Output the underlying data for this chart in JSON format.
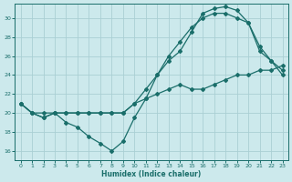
{
  "xlabel": "Humidex (Indice chaleur)",
  "bg_color": "#cce9ec",
  "line_color": "#1a6e6a",
  "grid_color": "#aacfd4",
  "xlim": [
    -0.5,
    23.5
  ],
  "ylim": [
    15.0,
    31.5
  ],
  "yticks": [
    16,
    18,
    20,
    22,
    24,
    26,
    28,
    30
  ],
  "xticks": [
    0,
    1,
    2,
    3,
    4,
    5,
    6,
    7,
    8,
    9,
    10,
    11,
    12,
    13,
    14,
    15,
    16,
    17,
    18,
    19,
    20,
    21,
    22,
    23
  ],
  "curve1_x": [
    0,
    1,
    2,
    3,
    4,
    5,
    6,
    7,
    8,
    9,
    10,
    11,
    12,
    13,
    14,
    15,
    16,
    17,
    18,
    19,
    20,
    21,
    22,
    23
  ],
  "curve1_y": [
    21.0,
    20.0,
    19.5,
    20.0,
    19.0,
    18.5,
    17.5,
    16.8,
    16.0,
    17.0,
    19.5,
    21.5,
    24.0,
    25.5,
    26.5,
    28.5,
    30.5,
    31.0,
    31.2,
    30.8,
    29.5,
    27.0,
    25.5,
    24.0
  ],
  "curve2_x": [
    0,
    1,
    2,
    3,
    4,
    5,
    6,
    7,
    8,
    9,
    10,
    11,
    12,
    13,
    14,
    15,
    16,
    17,
    18,
    19,
    20,
    21,
    22,
    23
  ],
  "curve2_y": [
    21.0,
    20.0,
    19.5,
    20.0,
    20.0,
    20.0,
    20.0,
    20.0,
    20.0,
    20.0,
    21.0,
    22.5,
    24.0,
    26.0,
    27.5,
    29.0,
    30.0,
    30.5,
    30.5,
    30.0,
    29.5,
    26.5,
    25.5,
    24.5
  ],
  "curve3_x": [
    0,
    1,
    2,
    3,
    4,
    5,
    6,
    7,
    8,
    9,
    10,
    11,
    12,
    13,
    14,
    15,
    16,
    17,
    18,
    19,
    20,
    21,
    22,
    23
  ],
  "curve3_y": [
    21.0,
    20.0,
    20.0,
    20.0,
    20.0,
    20.0,
    20.0,
    20.0,
    20.0,
    20.0,
    21.0,
    21.5,
    22.0,
    22.5,
    23.0,
    22.5,
    22.5,
    23.0,
    23.5,
    24.0,
    24.0,
    24.5,
    24.5,
    25.0
  ]
}
